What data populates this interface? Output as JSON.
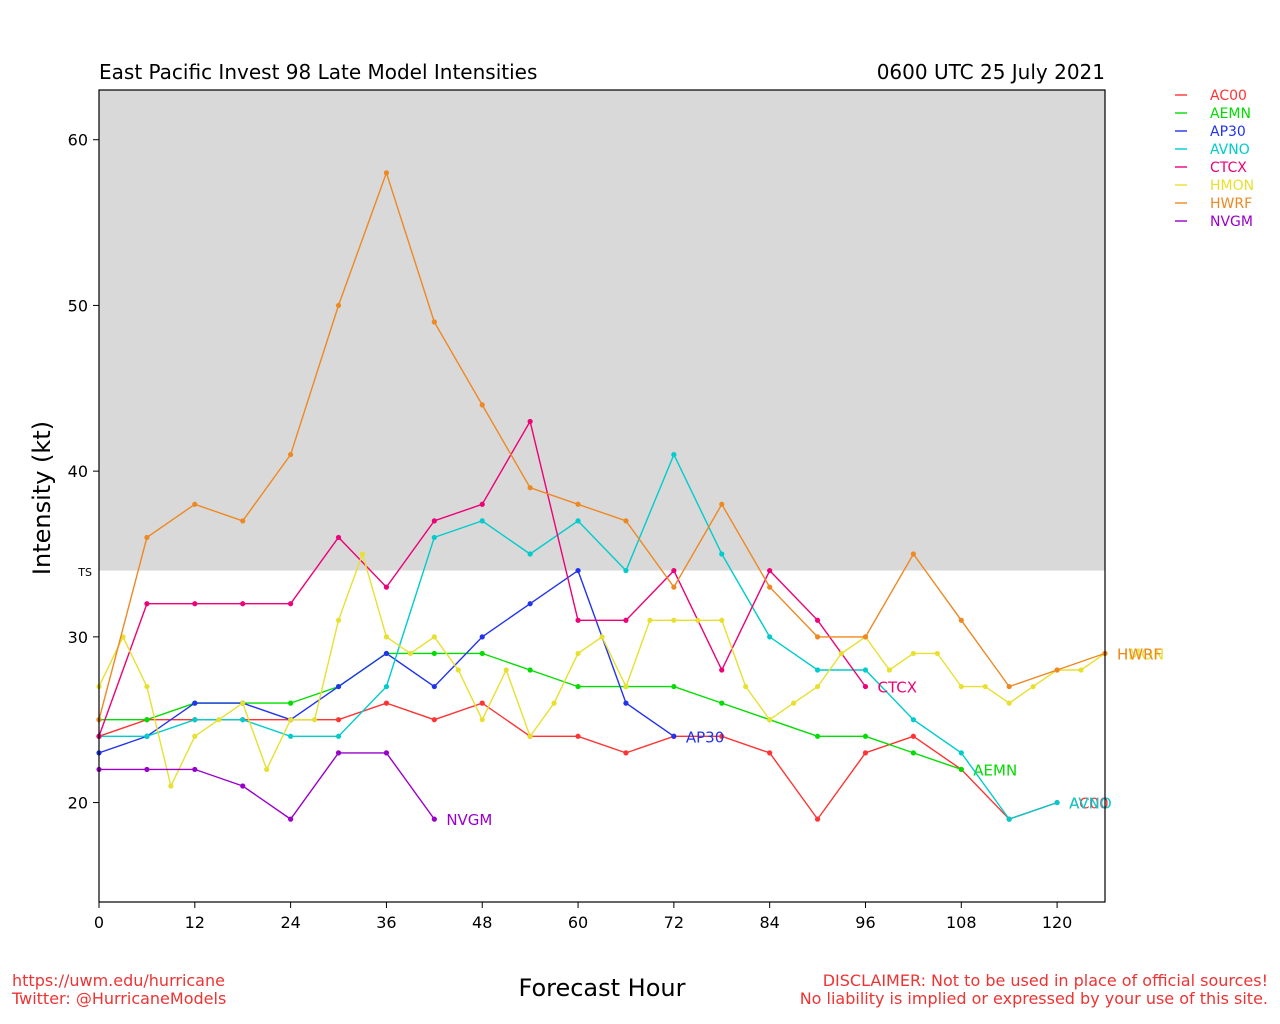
{
  "chart_data": {
    "type": "line",
    "title": "East Pacific Invest 98 Late Model Intensities",
    "subtitle": "0600 UTC 25 July 2021",
    "xlabel": "Forecast Hour",
    "ylabel": "Intensity (kt)",
    "xlim": [
      0,
      126
    ],
    "ylim": [
      14,
      63
    ],
    "x_ticks": [
      0,
      12,
      24,
      36,
      48,
      60,
      72,
      84,
      96,
      108,
      120
    ],
    "y_ticks": [
      20,
      30,
      40,
      50,
      60
    ],
    "ts_threshold": 34,
    "ts_label": "TS",
    "shaded_region": "intensity >= 34 kt shaded light gray",
    "legend_position": "right, outside plot, top",
    "series": [
      {
        "name": "AC00",
        "color": "#ff3333",
        "x": [
          0,
          6,
          12,
          18,
          24,
          30,
          36,
          42,
          48,
          54,
          60,
          66,
          72,
          78,
          84,
          90,
          96,
          102,
          108,
          114,
          120
        ],
        "y": [
          24,
          25,
          25,
          25,
          25,
          25,
          26,
          25,
          26,
          24,
          24,
          23,
          24,
          24,
          23,
          19,
          23,
          24,
          22,
          19,
          20
        ]
      },
      {
        "name": "AEMN",
        "color": "#00dd00",
        "x": [
          0,
          6,
          12,
          18,
          24,
          30,
          36,
          42,
          48,
          54,
          60,
          66,
          72,
          78,
          84,
          90,
          96,
          102,
          108
        ],
        "y": [
          25,
          25,
          26,
          26,
          26,
          27,
          29,
          29,
          29,
          28,
          27,
          27,
          27,
          26,
          25,
          24,
          24,
          23,
          22
        ]
      },
      {
        "name": "AP30",
        "color": "#2233ee",
        "x": [
          0,
          6,
          12,
          18,
          24,
          30,
          36,
          42,
          48,
          54,
          60,
          66,
          72
        ],
        "y": [
          23,
          24,
          26,
          26,
          25,
          27,
          29,
          27,
          30,
          32,
          34,
          26,
          24
        ]
      },
      {
        "name": "AVNO",
        "color": "#00cccc",
        "x": [
          0,
          6,
          12,
          18,
          24,
          30,
          36,
          42,
          48,
          54,
          60,
          66,
          72,
          78,
          84,
          90,
          96,
          102,
          108,
          114,
          120
        ],
        "y": [
          24,
          24,
          25,
          25,
          24,
          24,
          27,
          36,
          37,
          35,
          37,
          34,
          41,
          35,
          30,
          28,
          28,
          25,
          23,
          19,
          20
        ]
      },
      {
        "name": "CTCX",
        "color": "#ee0077",
        "x": [
          0,
          6,
          12,
          18,
          24,
          30,
          36,
          42,
          48,
          54,
          60,
          66,
          72,
          78,
          84,
          90,
          96
        ],
        "y": [
          24,
          32,
          32,
          32,
          32,
          36,
          33,
          37,
          38,
          43,
          31,
          31,
          34,
          28,
          34,
          31,
          27
        ]
      },
      {
        "name": "HMON",
        "color": "#e8e030",
        "x": [
          0,
          3,
          6,
          9,
          12,
          15,
          18,
          21,
          24,
          27,
          30,
          33,
          36,
          39,
          42,
          45,
          48,
          51,
          54,
          57,
          60,
          63,
          66,
          69,
          72,
          75,
          78,
          81,
          84,
          87,
          90,
          93,
          96,
          99,
          102,
          105,
          108,
          111,
          114,
          117,
          120,
          123,
          126
        ],
        "y": [
          27,
          30,
          27,
          21,
          24,
          25,
          26,
          22,
          25,
          25,
          31,
          35,
          30,
          29,
          30,
          28,
          25,
          28,
          24,
          26,
          29,
          30,
          27,
          31,
          31,
          31,
          31,
          27,
          25,
          26,
          27,
          29,
          30,
          28,
          29,
          29,
          27,
          27,
          26,
          27,
          28,
          28,
          29
        ]
      },
      {
        "name": "HWRF",
        "color": "#ee8822",
        "x": [
          0,
          6,
          12,
          18,
          24,
          30,
          36,
          42,
          48,
          54,
          60,
          66,
          72,
          78,
          84,
          90,
          96,
          102,
          108,
          114,
          120,
          126
        ],
        "y": [
          25,
          36,
          38,
          37,
          41,
          50,
          58,
          49,
          44,
          39,
          38,
          37,
          33,
          38,
          33,
          30,
          30,
          35,
          31,
          27,
          28,
          29
        ]
      },
      {
        "name": "NVGM",
        "color": "#9900cc",
        "x": [
          0,
          6,
          12,
          18,
          24,
          30,
          36,
          42
        ],
        "y": [
          22,
          22,
          22,
          21,
          19,
          23,
          23,
          19
        ]
      }
    ]
  },
  "footer": {
    "url": "https://uwm.edu/hurricane",
    "twitter": "Twitter: @HurricaneModels",
    "disclaimer_line1": "DISCLAIMER: Not to be used in place of official sources!",
    "disclaimer_line2": "No liability is implied or expressed by your use of this site."
  }
}
